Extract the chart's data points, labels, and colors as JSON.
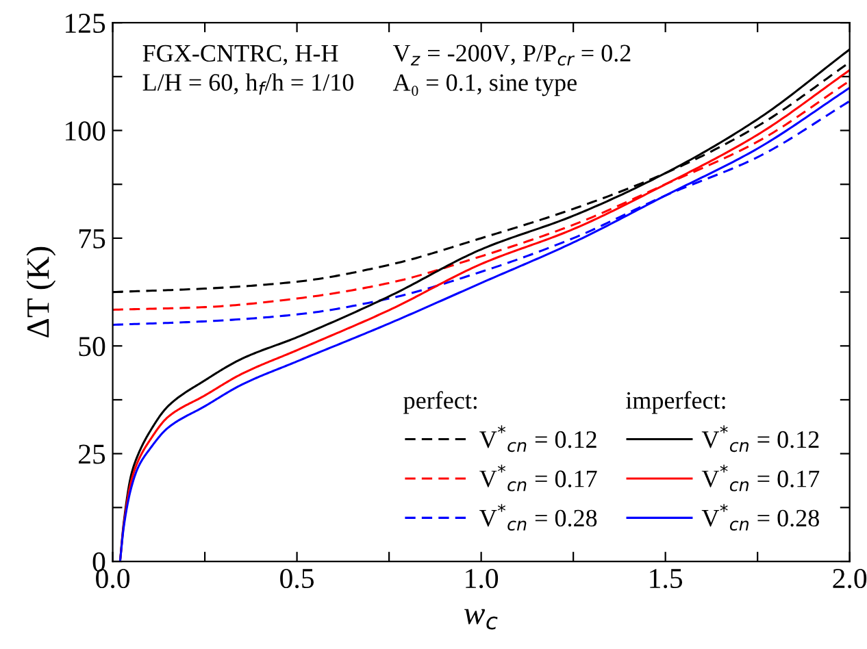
{
  "chart_data": {
    "type": "line",
    "xlabel": "w$_{c}$",
    "ylabel": "ΔT (K)",
    "xlim": [
      0,
      2
    ],
    "ylim": [
      0,
      125
    ],
    "xticks": [
      {
        "value": 0,
        "label": "0.0"
      },
      {
        "value": 0.25,
        "label": null
      },
      {
        "value": 0.5,
        "label": "0.5"
      },
      {
        "value": 0.75,
        "label": null
      },
      {
        "value": 1,
        "label": "1.0"
      },
      {
        "value": 1.25,
        "label": null
      },
      {
        "value": 1.5,
        "label": "1.5"
      },
      {
        "value": 1.75,
        "label": null
      },
      {
        "value": 2,
        "label": "2.0"
      }
    ],
    "yticks": [
      0,
      {
        "value": 12.5,
        "label": null
      },
      25,
      {
        "value": 37.5,
        "label": null
      },
      50,
      {
        "value": 62.5,
        "label": null
      },
      75,
      {
        "value": 87.5,
        "label": null
      },
      100,
      {
        "value": 112.5,
        "label": null
      },
      125
    ],
    "grid": false,
    "legend": "bottom right",
    "marker": "none",
    "annotations": [
      "FGX-CNTRC, H-H\nL/H = 60, h$_{f}$/h = 1/10",
      "V$_{z}$ = -200V, P/P$_{cr}$ = 0.2\nA₀ = 0.1, sine type",
      "perfect:",
      "imperfect:"
    ],
    "series": [
      {
        "name": "V$^{*}$$_{cn}$ = 0.12",
        "color": "#000000",
        "line_style": "dashed",
        "x": [
          0,
          0.25,
          0.5,
          0.75,
          1,
          1.25,
          1.5,
          1.75,
          2
        ],
        "values": [
          62.5,
          63.3,
          64.9,
          68.8,
          75,
          81.8,
          90.1,
          101,
          115.8
        ]
      },
      {
        "name": "V$^{*}$$_{cn}$ = 0.17",
        "color": "#ff0000",
        "line_style": "dashed",
        "x": [
          0,
          0.25,
          0.5,
          0.75,
          1,
          1.25,
          1.5,
          1.75,
          2
        ],
        "values": [
          58.4,
          59,
          61,
          64.6,
          70.8,
          78.1,
          87.5,
          97.4,
          111.5
        ]
      },
      {
        "name": "V$^{*}$$_{cn}$ = 0.28",
        "color": "#0000ff",
        "line_style": "dashed",
        "x": [
          0,
          0.25,
          0.5,
          0.75,
          1,
          1.25,
          1.5,
          1.75,
          2
        ],
        "values": [
          54.9,
          55.7,
          57.3,
          61,
          67.2,
          75,
          84.9,
          93.8,
          106.8
        ]
      },
      {
        "name": "V$^{*}$$_{cn}$ = 0.12",
        "color": "#000000",
        "line_style": "solid",
        "x": [
          0.02,
          0.03,
          0.05,
          0.07,
          0.1,
          0.15,
          0.25,
          0.35,
          0.5,
          0.75,
          1,
          1.25,
          1.5,
          1.75,
          2
        ],
        "values": [
          0,
          9,
          20,
          25,
          30,
          36,
          42,
          47,
          52,
          61.5,
          72.4,
          80.2,
          90.1,
          102.6,
          118.8
        ]
      },
      {
        "name": "V$^{*}$$_{cn}$ = 0.17",
        "color": "#ff0000",
        "line_style": "solid",
        "x": [
          0.02,
          0.03,
          0.05,
          0.07,
          0.1,
          0.15,
          0.25,
          0.35,
          0.5,
          0.75,
          1,
          1.25,
          1.5,
          1.75,
          2
        ],
        "values": [
          0,
          8.5,
          18.5,
          23.5,
          28,
          33.5,
          38.5,
          43.5,
          49,
          58.3,
          69,
          77.1,
          87.5,
          99,
          114
        ]
      },
      {
        "name": "V$^{*}$$_{cn}$ = 0.28",
        "color": "#0000ff",
        "line_style": "solid",
        "x": [
          0.02,
          0.03,
          0.05,
          0.07,
          0.1,
          0.15,
          0.25,
          0.35,
          0.5,
          0.75,
          1,
          1.25,
          1.5,
          1.75,
          2
        ],
        "values": [
          0,
          8,
          17,
          22,
          26,
          31,
          36,
          41,
          46.4,
          55.2,
          64.6,
          74,
          84.9,
          95.8,
          109.9
        ]
      }
    ]
  }
}
